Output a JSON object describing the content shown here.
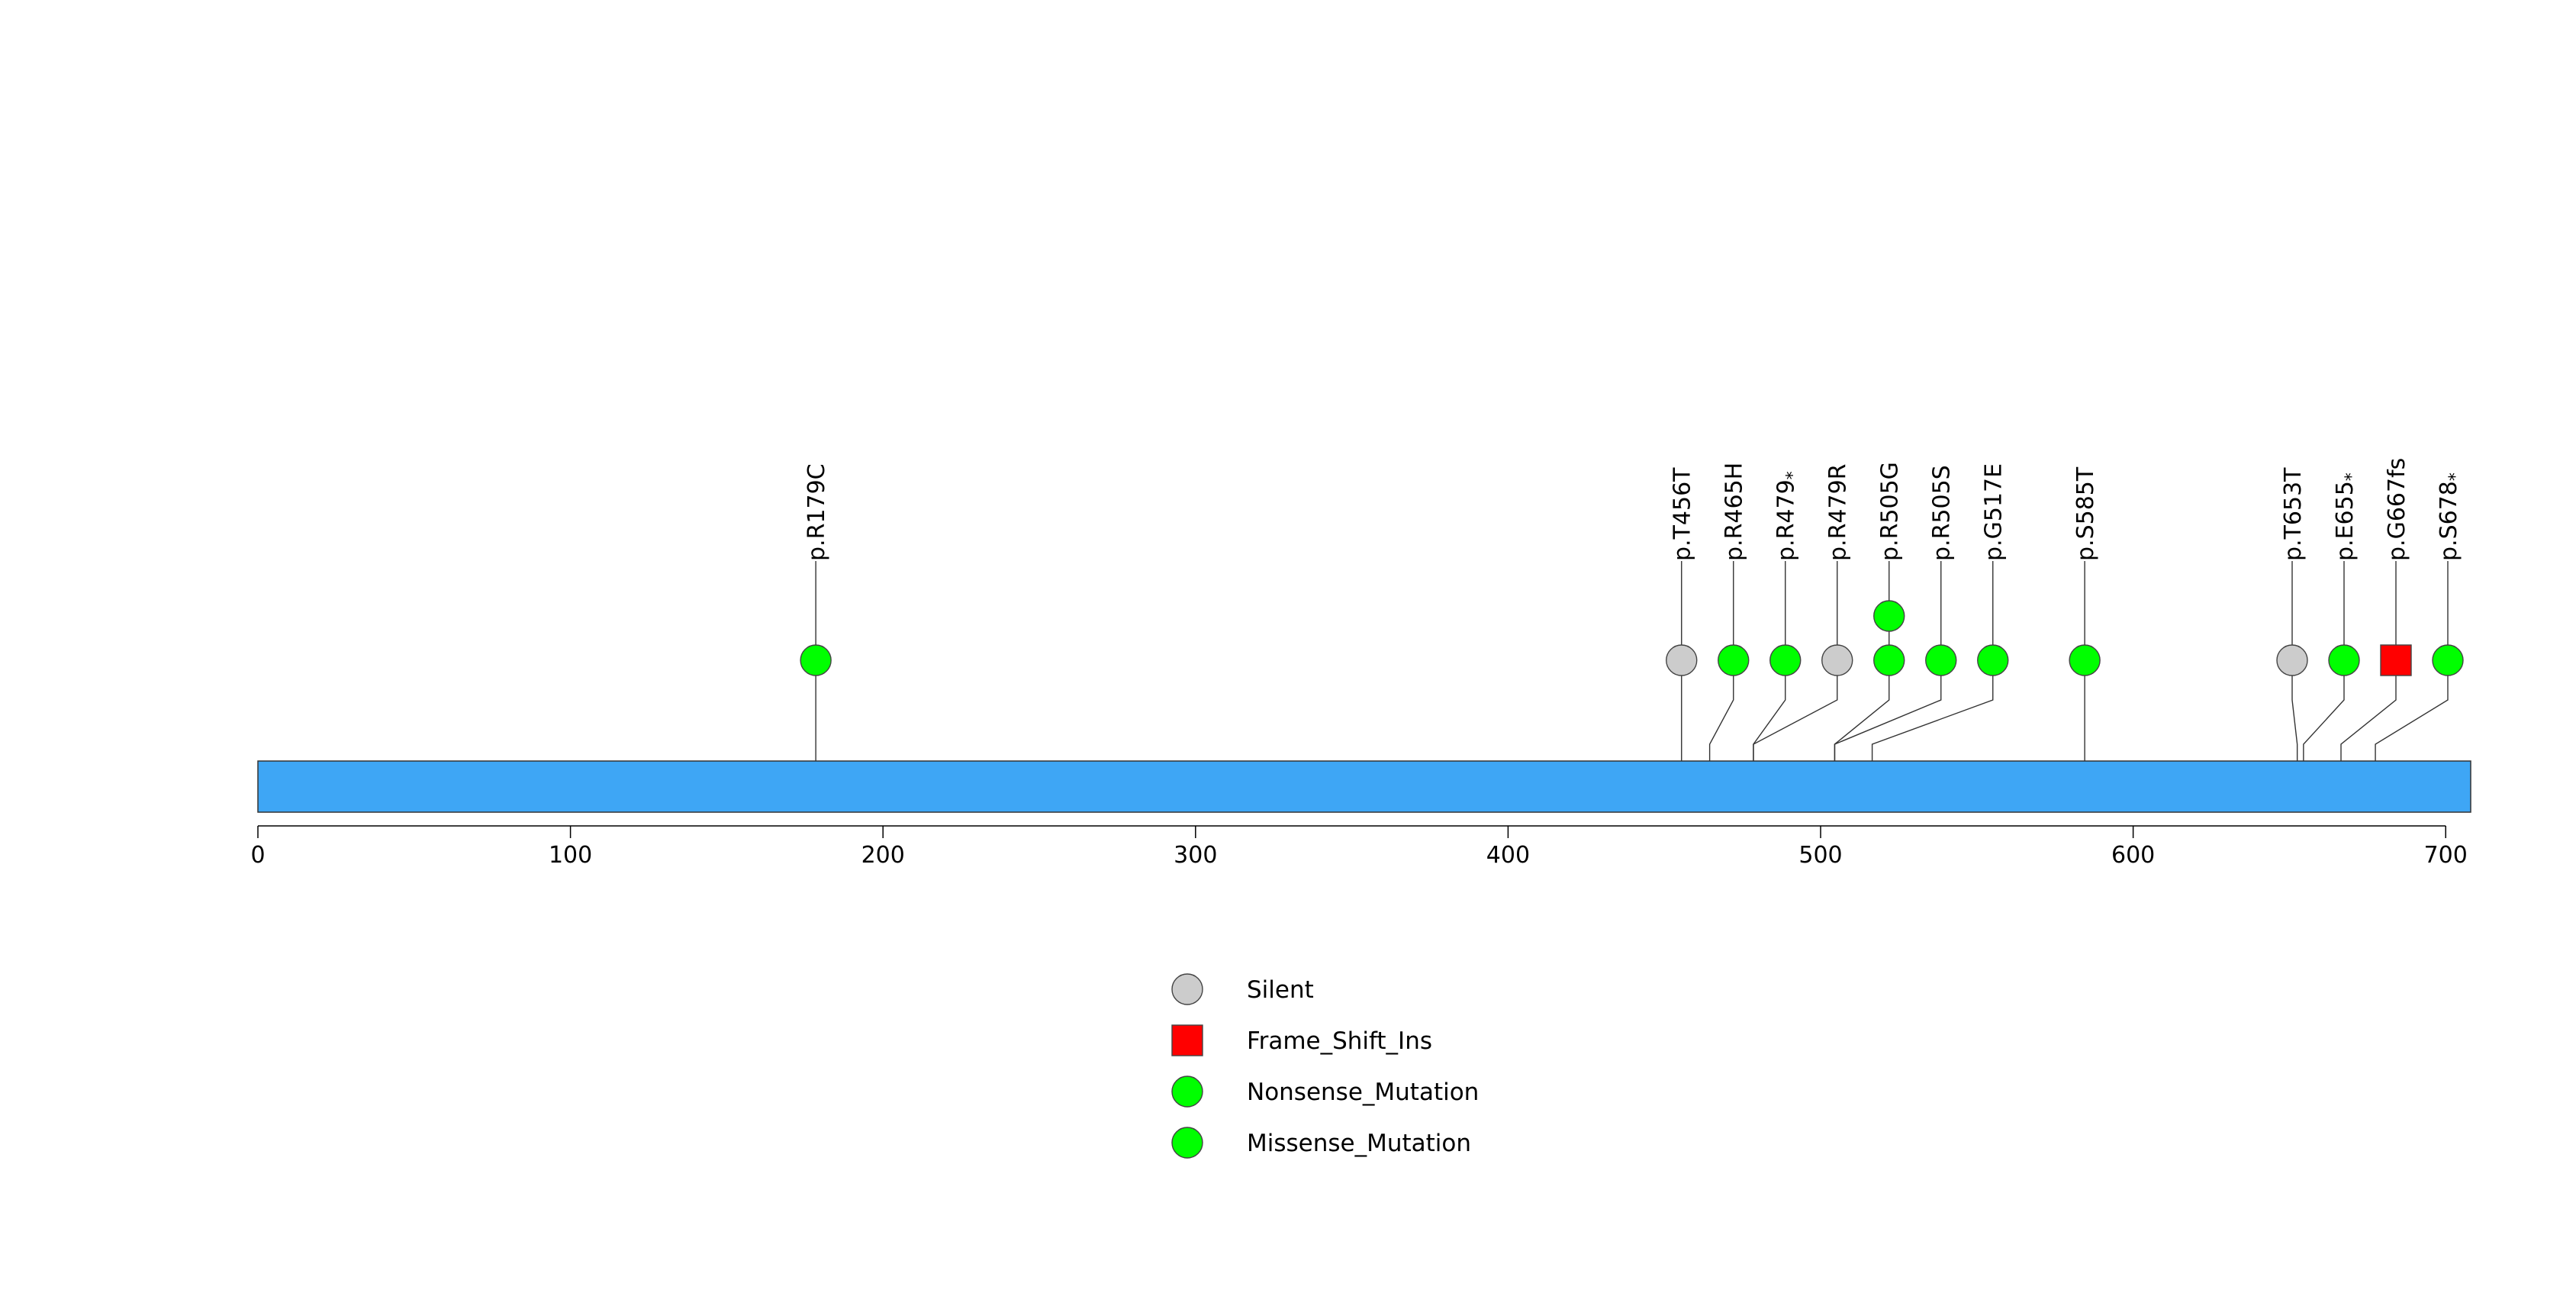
{
  "chart_data": {
    "type": "lollipop",
    "xlim": [
      0,
      708
    ],
    "protein_length": 708,
    "ticks": [
      0,
      100,
      200,
      300,
      400,
      500,
      600,
      700
    ],
    "protein_color": "#3ea6f5",
    "mutations": [
      {
        "label": "p.R179C",
        "position": 178.5,
        "count": 1,
        "type": "Missense_Mutation",
        "label_star": false
      },
      {
        "label": "p.T456T",
        "position": 455.5,
        "count": 1,
        "type": "Silent",
        "label_star": false
      },
      {
        "label": "p.R465H",
        "position": 464.5,
        "count": 1,
        "type": "Missense_Mutation",
        "label_star": false
      },
      {
        "label": "p.R479",
        "position": 478.5,
        "count": 1,
        "type": "Nonsense_Mutation",
        "label_star": true
      },
      {
        "label": "p.R479R",
        "position": 478.5,
        "count": 1,
        "type": "Silent",
        "label_star": false
      },
      {
        "label": "p.R505G",
        "position": 504.5,
        "count": 2,
        "type": "Missense_Mutation",
        "label_star": false
      },
      {
        "label": "p.R505S",
        "position": 504.5,
        "count": 1,
        "type": "Missense_Mutation",
        "label_star": false
      },
      {
        "label": "p.G517E",
        "position": 516.5,
        "count": 1,
        "type": "Missense_Mutation",
        "label_star": false
      },
      {
        "label": "p.S585T",
        "position": 584.5,
        "count": 1,
        "type": "Missense_Mutation",
        "label_star": false
      },
      {
        "label": "p.T653T",
        "position": 652.5,
        "count": 1,
        "type": "Silent",
        "label_star": false
      },
      {
        "label": "p.E655",
        "position": 654.5,
        "count": 1,
        "type": "Nonsense_Mutation",
        "label_star": true
      },
      {
        "label": "p.G667fs",
        "position": 666.5,
        "count": 1,
        "type": "Frame_Shift_Ins",
        "label_star": false
      },
      {
        "label": "p.S678",
        "position": 677.5,
        "count": 1,
        "type": "Nonsense_Mutation",
        "label_star": true
      }
    ],
    "legend": [
      {
        "label": "Silent",
        "shape": "circle",
        "color": "#cccccc"
      },
      {
        "label": "Frame_Shift_Ins",
        "shape": "square",
        "color": "#ff0000"
      },
      {
        "label": "Nonsense_Mutation",
        "shape": "circle",
        "color": "#00ff00"
      },
      {
        "label": "Missense_Mutation",
        "shape": "circle",
        "color": "#00ff00"
      }
    ],
    "type_colors": {
      "Silent": "#cccccc",
      "Frame_Shift_Ins": "#ff0000",
      "Nonsense_Mutation": "#00ff00",
      "Missense_Mutation": "#00ff00"
    }
  }
}
